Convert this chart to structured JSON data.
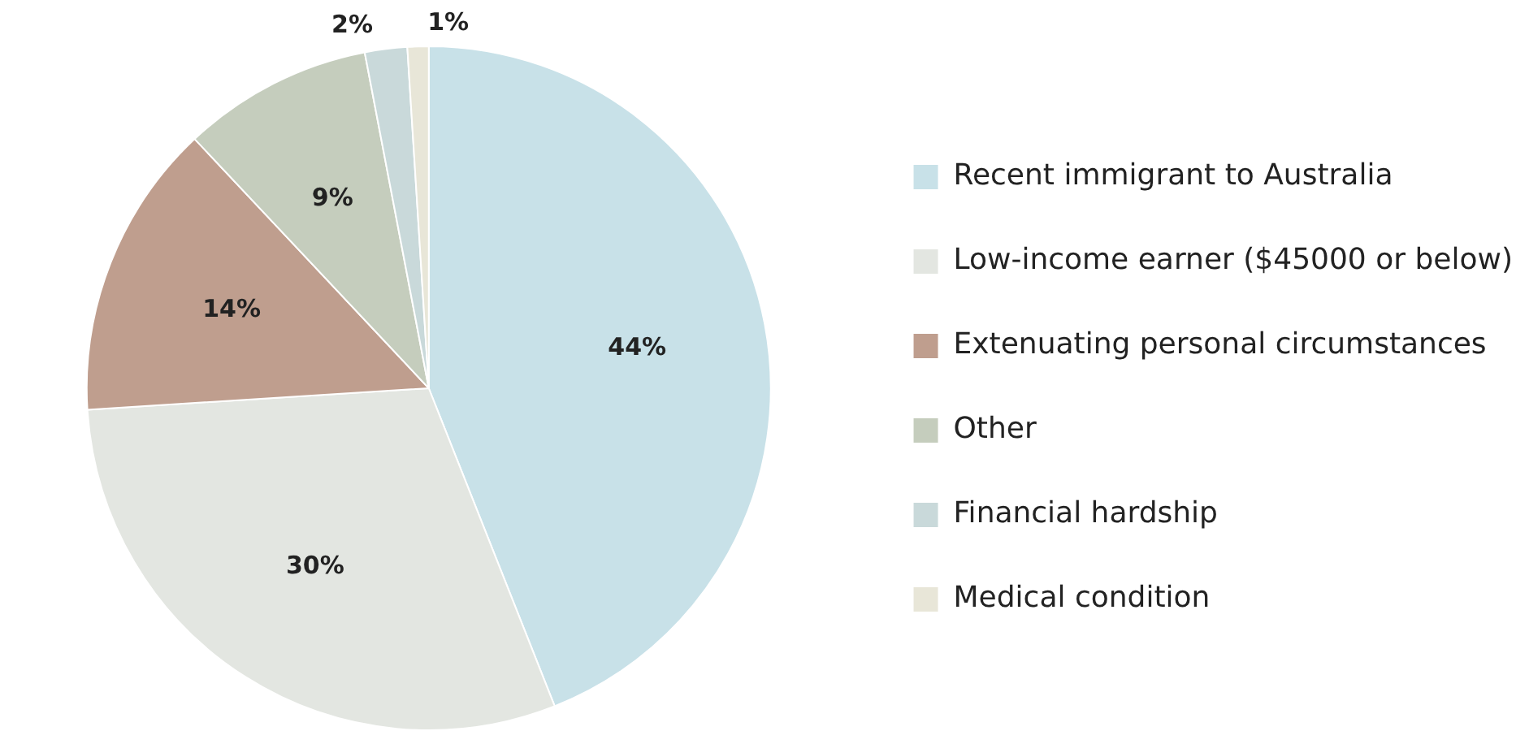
{
  "chart_data": {
    "type": "pie",
    "categories": [
      "Recent immigrant to Australia",
      "Low-income earner ($45000 or below)",
      "Extenuating personal circumstances",
      "Other",
      "Financial hardship",
      "Medical condition"
    ],
    "values": [
      44,
      30,
      14,
      9,
      2,
      1
    ],
    "value_labels": [
      "44%",
      "30%",
      "14%",
      "9%",
      "2%",
      "1%"
    ],
    "colors": [
      "#c8e1e8",
      "#e3e6e1",
      "#bf9e8e",
      "#c5cdbd",
      "#c9d9da",
      "#e8e6d8"
    ],
    "legend": "right"
  }
}
